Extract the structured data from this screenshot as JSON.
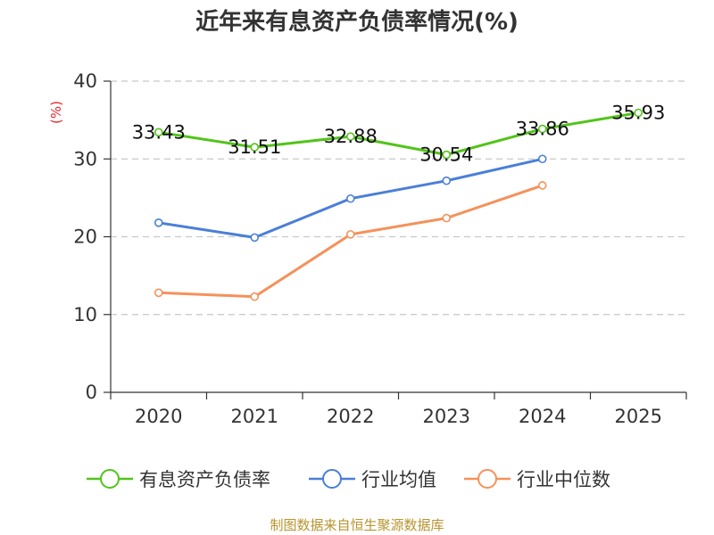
{
  "title": "近年来有息资产负债率情况(%)",
  "source": "制图数据来自恒生聚源数据库",
  "chart_data": {
    "type": "line",
    "title": "近年来有息资产负债率情况(%)",
    "ylabel": "(%)",
    "xlabel": "",
    "categories": [
      "2020",
      "2021",
      "2022",
      "2023",
      "2024",
      "2025"
    ],
    "ylim": [
      0,
      40
    ],
    "yticks": [
      0,
      10,
      20,
      30,
      40
    ],
    "grid": true,
    "legend_position": "bottom",
    "series": [
      {
        "name": "有息资产负债率",
        "color": "#52c41a",
        "values": [
          33.43,
          31.51,
          32.88,
          30.54,
          33.86,
          35.93
        ],
        "labels": [
          "33.43",
          "31.51",
          "32.88",
          "30.54",
          "33.86",
          "35.93"
        ]
      },
      {
        "name": "行业均值",
        "color": "#4a7fd8",
        "values": [
          21.8,
          19.9,
          24.9,
          27.2,
          30.0,
          null
        ]
      },
      {
        "name": "行业中位数",
        "color": "#f5915a",
        "values": [
          12.8,
          12.3,
          20.3,
          22.4,
          26.6,
          null
        ]
      }
    ]
  }
}
